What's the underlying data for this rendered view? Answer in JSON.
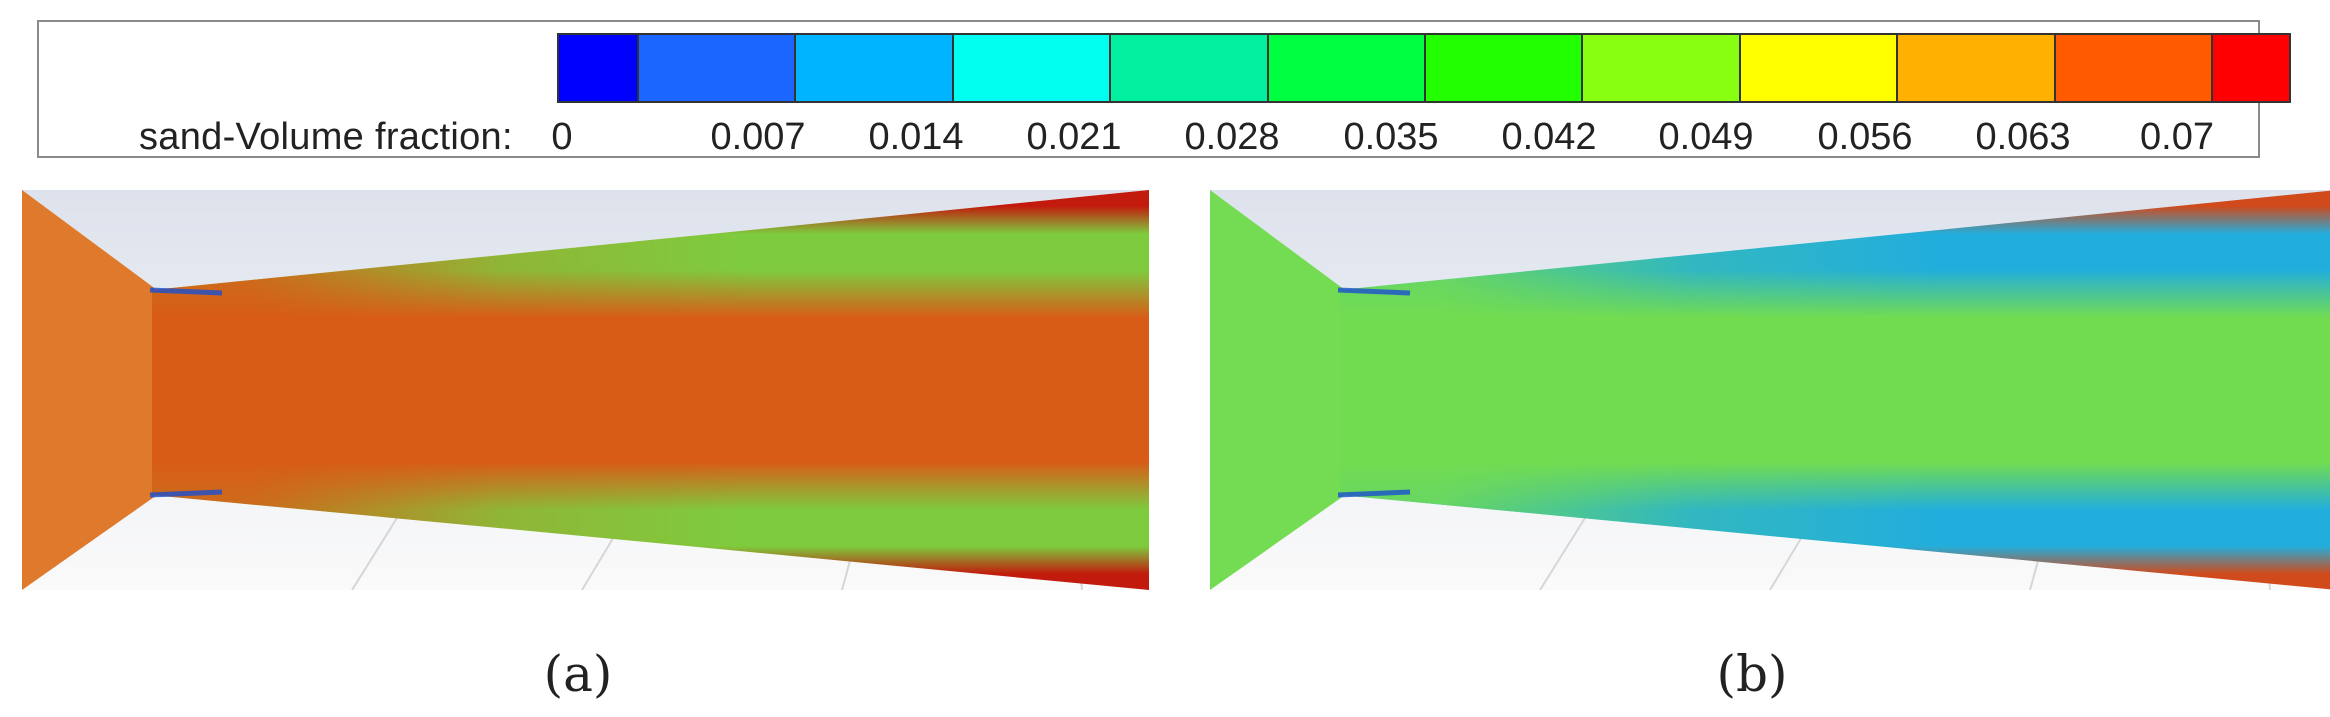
{
  "legend": {
    "title": "sand-Volume fraction:",
    "tick_labels": [
      "0",
      "0.007",
      "0.014",
      "0.021",
      "0.028",
      "0.035",
      "0.042",
      "0.049",
      "0.056",
      "0.063",
      "0.07"
    ],
    "colors": [
      "#0000ff",
      "#1a66ff",
      "#00b4ff",
      "#00ffee",
      "#00f0a0",
      "#00ff40",
      "#22ff00",
      "#88ff10",
      "#ffff00",
      "#ffb000",
      "#ff5a00",
      "#ff0000"
    ]
  },
  "panels": [
    {
      "caption": "(a)",
      "core_color": "#d85c16",
      "edge_color": "#7ecc3e",
      "wall_color": "#c21a0c",
      "inlet_color": "#df7a2c"
    },
    {
      "caption": "(b)",
      "core_color": "#72dc50",
      "edge_color": "#22aedc",
      "wall_color": "#d04a1c",
      "inlet_color": "#74dc52"
    }
  ]
}
